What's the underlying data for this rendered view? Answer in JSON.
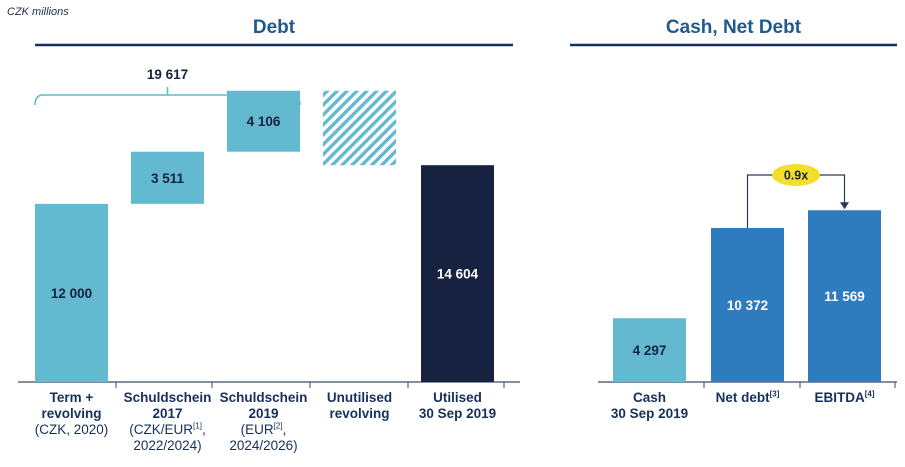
{
  "unit_label": "CZK millions",
  "sections": {
    "debt": "Debt",
    "cash_net_debt": "Cash, Net Debt"
  },
  "bracket_total": "19 617",
  "ratio_badge": "0.9x",
  "categories": [
    {
      "bold": [
        "Term +",
        "revolving"
      ],
      "normal": [
        "(CZK, 2020)"
      ]
    },
    {
      "bold": [
        "Schuldschein",
        "2017"
      ],
      "normal": [
        "(CZK/EUR[1],",
        "2022/2024)"
      ]
    },
    {
      "bold": [
        "Schuldschein",
        "2019"
      ],
      "normal": [
        "(EUR[2],",
        "2024/2026)"
      ]
    },
    {
      "bold": [
        "Unutilised",
        "revolving"
      ],
      "normal": []
    },
    {
      "bold": [
        "Utilised",
        "30 Sep 2019"
      ],
      "normal": []
    },
    {
      "bold": [
        "Cash",
        "30 Sep 2019"
      ],
      "normal": []
    },
    {
      "bold": [
        "Net debt[3]"
      ],
      "normal": []
    },
    {
      "bold": [
        "EBITDA[4]"
      ],
      "normal": []
    }
  ],
  "colors": {
    "light_blue": "#63b9cf",
    "navy": "#172240",
    "mid_blue": "#2e7bbd",
    "title_blue": "#1f5a8c",
    "badge_yellow": "#f2df2c",
    "axis": "#3a4a6b"
  },
  "chart_data": {
    "type": "bar",
    "title": "",
    "unit": "CZK millions",
    "categories": [
      "Term + revolving",
      "Schuldschein 2017",
      "Schuldschein 2019",
      "Unutilised revolving",
      "Utilised 30 Sep 2019",
      "Cash 30 Sep 2019",
      "Net debt",
      "EBITDA"
    ],
    "bars": [
      {
        "category": "Term + revolving",
        "start": 0,
        "end": 12000,
        "label": "12 000",
        "style": "light"
      },
      {
        "category": "Schuldschein 2017",
        "start": 12000,
        "end": 15511,
        "label": "3 511",
        "style": "light"
      },
      {
        "category": "Schuldschein 2019",
        "start": 15511,
        "end": 19617,
        "label": "4 106",
        "style": "light"
      },
      {
        "category": "Unutilised revolving",
        "start": 14604,
        "end": 19617,
        "label": "",
        "style": "hatched"
      },
      {
        "category": "Utilised 30 Sep 2019",
        "start": 0,
        "end": 14604,
        "label": "14 604",
        "style": "navy"
      },
      {
        "category": "Cash 30 Sep 2019",
        "start": 0,
        "end": 4297,
        "label": "4 297",
        "style": "light"
      },
      {
        "category": "Net debt",
        "start": 0,
        "end": 10372,
        "label": "10 372",
        "style": "mid"
      },
      {
        "category": "EBITDA",
        "start": 0,
        "end": 11569,
        "label": "11 569",
        "style": "mid"
      }
    ],
    "bracket": {
      "from": "Term + revolving",
      "to": "Schuldschein 2019",
      "value": 19617,
      "label": "19 617"
    },
    "ratio": {
      "from": "Net debt",
      "to": "EBITDA",
      "label": "0.9x"
    },
    "ylim": [
      0,
      22700
    ]
  }
}
